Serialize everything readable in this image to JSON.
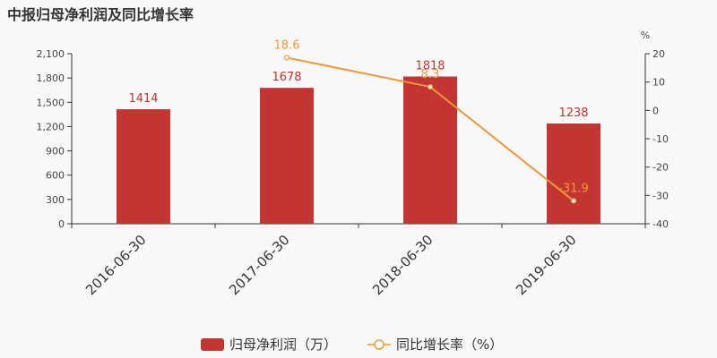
{
  "title": "中报归母净利润及同比增长率",
  "chart_data": {
    "type": "bar",
    "title": "中报归母净利润及同比增长率",
    "categories": [
      "2016-06-30",
      "2017-06-30",
      "2018-06-30",
      "2019-06-30"
    ],
    "series": [
      {
        "name": "归母净利润（万）",
        "type": "bar",
        "axis": "left",
        "values": [
          1414,
          1678,
          1818,
          1238
        ],
        "labels": [
          "1414",
          "1678",
          "1818",
          "1238"
        ]
      },
      {
        "name": "同比增长率（%）",
        "type": "line",
        "axis": "right",
        "values": [
          null,
          18.6,
          8.3,
          -31.9
        ],
        "labels": [
          "",
          "18.6",
          "8.3",
          "-31.9"
        ]
      }
    ],
    "y_left": {
      "min": 0,
      "max": 2100,
      "ticks": [
        "0",
        "300",
        "600",
        "900",
        "1,200",
        "1,500",
        "1,800",
        "2,100"
      ]
    },
    "y_right": {
      "min": -40,
      "max": 20,
      "unit": "%",
      "ticks": [
        "-40",
        "-30",
        "-20",
        "-10",
        "0",
        "10",
        "20"
      ]
    },
    "grid": false,
    "legend": "bottom-center",
    "colors": {
      "bar": "#c23531",
      "line": "#f0963c"
    }
  }
}
